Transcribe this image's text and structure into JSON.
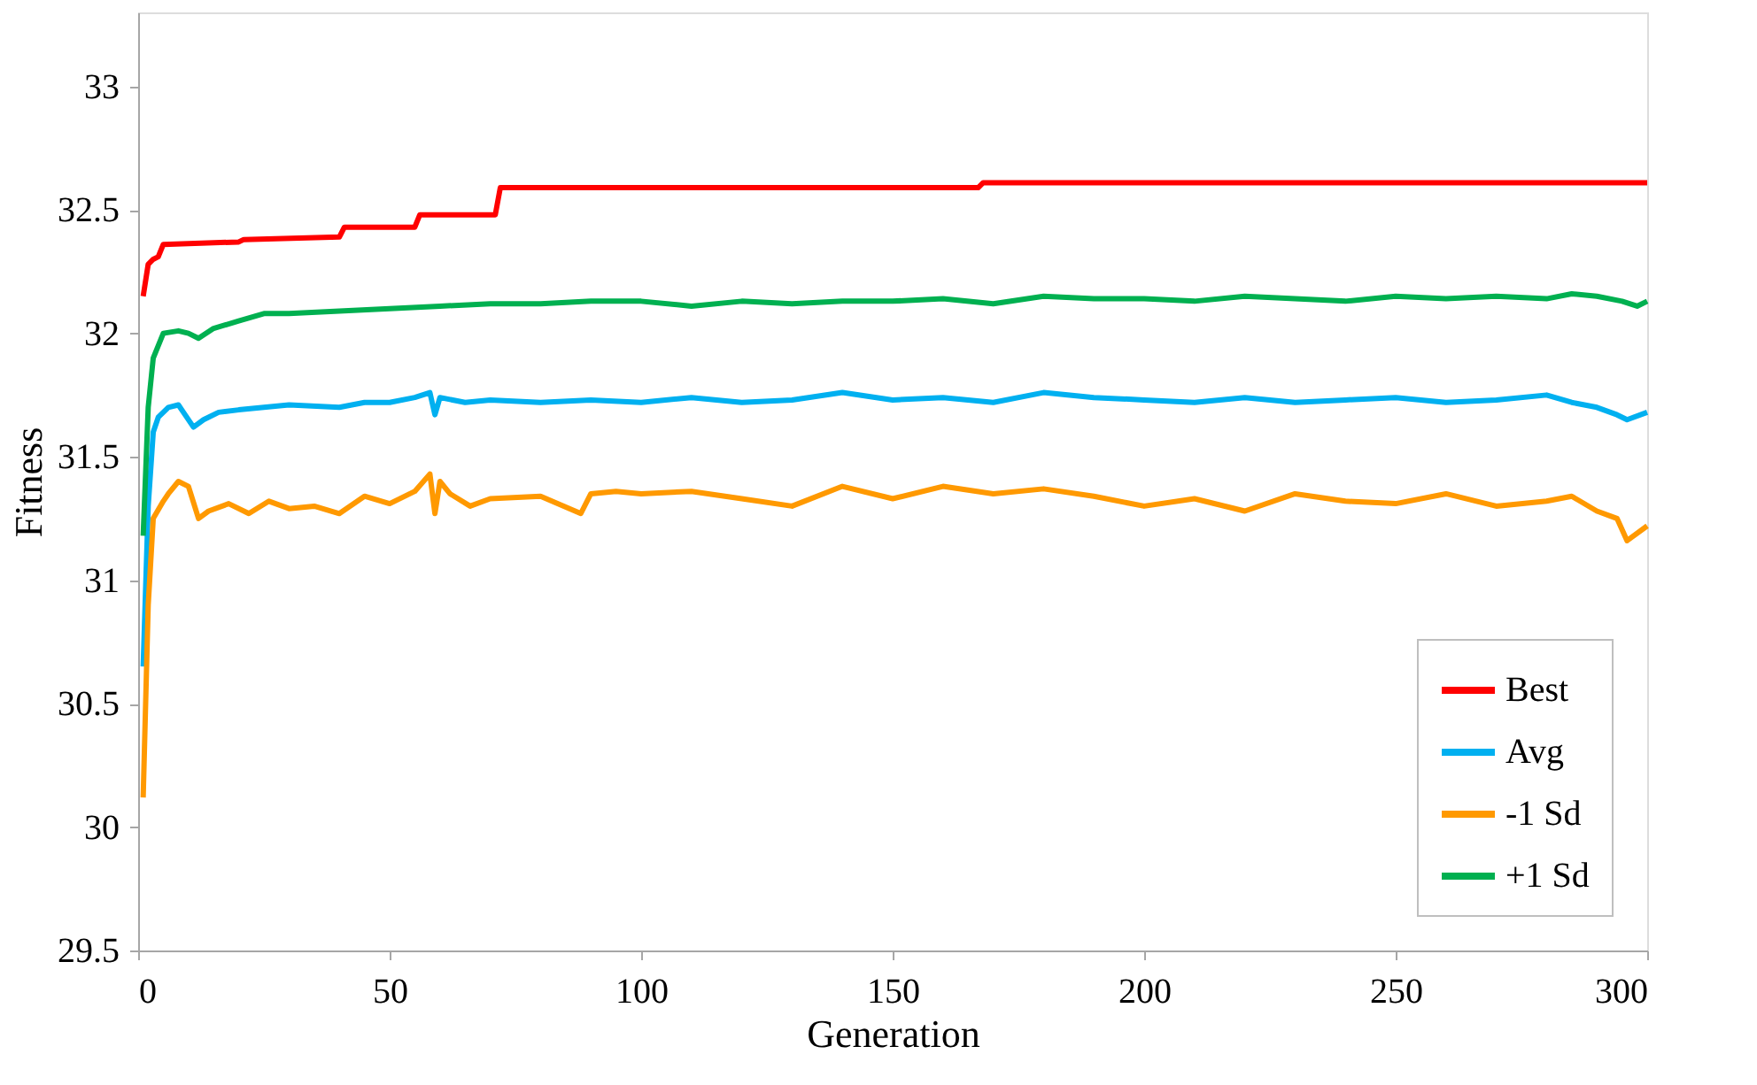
{
  "chart_data": {
    "type": "line",
    "xlabel": "Generation",
    "ylabel": "Fitness",
    "xlim": [
      0,
      300
    ],
    "xticks": [
      0,
      50,
      100,
      150,
      200,
      250,
      300
    ],
    "ylim": [
      29.5,
      33.3
    ],
    "yticks": [
      29.5,
      30,
      30.5,
      31,
      31.5,
      32,
      32.5,
      33
    ],
    "grid": false,
    "legend": "bottom right",
    "line_style": "solid",
    "marker": "none",
    "series": [
      {
        "name": "Best",
        "color": "#ff0000",
        "x": [
          1,
          2,
          3,
          4,
          5,
          20,
          21,
          40,
          41,
          55,
          56,
          71,
          72,
          167,
          168,
          300
        ],
        "values": [
          32.15,
          32.28,
          32.3,
          32.31,
          32.36,
          32.37,
          32.38,
          32.39,
          32.43,
          32.43,
          32.48,
          32.48,
          32.59,
          32.59,
          32.61,
          32.61
        ]
      },
      {
        "name": "Avg",
        "color": "#00b0f0",
        "x": [
          1,
          2,
          3,
          4,
          6,
          8,
          9,
          11,
          13,
          16,
          20,
          25,
          30,
          40,
          45,
          50,
          55,
          58,
          59,
          60,
          65,
          70,
          80,
          90,
          100,
          110,
          120,
          130,
          140,
          150,
          160,
          170,
          180,
          190,
          200,
          210,
          220,
          230,
          240,
          250,
          260,
          270,
          280,
          285,
          290,
          294,
          296,
          300
        ],
        "values": [
          30.65,
          31.3,
          31.6,
          31.66,
          31.7,
          31.71,
          31.68,
          31.62,
          31.65,
          31.68,
          31.69,
          31.7,
          31.71,
          31.7,
          31.72,
          31.72,
          31.74,
          31.76,
          31.67,
          31.74,
          31.72,
          31.73,
          31.72,
          31.73,
          31.72,
          31.74,
          31.72,
          31.73,
          31.76,
          31.73,
          31.74,
          31.72,
          31.76,
          31.74,
          31.73,
          31.72,
          31.74,
          31.72,
          31.73,
          31.74,
          31.72,
          31.73,
          31.75,
          31.72,
          31.7,
          31.67,
          31.65,
          31.68
        ]
      },
      {
        "name": "-1 Sd",
        "color": "#ff9900",
        "x": [
          1,
          2,
          3,
          5,
          6,
          8,
          10,
          12,
          14,
          18,
          22,
          26,
          30,
          35,
          40,
          45,
          50,
          55,
          58,
          59,
          60,
          62,
          66,
          70,
          80,
          88,
          90,
          95,
          100,
          110,
          120,
          130,
          140,
          150,
          160,
          170,
          180,
          190,
          200,
          210,
          220,
          230,
          240,
          250,
          260,
          270,
          280,
          285,
          290,
          294,
          296,
          300
        ],
        "values": [
          30.12,
          30.9,
          31.25,
          31.32,
          31.35,
          31.4,
          31.38,
          31.25,
          31.28,
          31.31,
          31.27,
          31.32,
          31.29,
          31.3,
          31.27,
          31.34,
          31.31,
          31.36,
          31.43,
          31.27,
          31.4,
          31.35,
          31.3,
          31.33,
          31.34,
          31.27,
          31.35,
          31.36,
          31.35,
          31.36,
          31.33,
          31.3,
          31.38,
          31.33,
          31.38,
          31.35,
          31.37,
          31.34,
          31.3,
          31.33,
          31.28,
          31.35,
          31.32,
          31.31,
          31.35,
          31.3,
          31.32,
          31.34,
          31.28,
          31.25,
          31.16,
          31.22
        ]
      },
      {
        "name": "+1 Sd",
        "color": "#00b050",
        "x": [
          1,
          2,
          3,
          5,
          8,
          10,
          12,
          15,
          20,
          25,
          30,
          40,
          50,
          60,
          70,
          80,
          90,
          100,
          110,
          120,
          130,
          140,
          150,
          160,
          170,
          180,
          190,
          200,
          210,
          220,
          230,
          240,
          250,
          260,
          270,
          280,
          285,
          290,
          295,
          298,
          300
        ],
        "values": [
          31.18,
          31.7,
          31.9,
          32.0,
          32.01,
          32.0,
          31.98,
          32.02,
          32.05,
          32.08,
          32.08,
          32.09,
          32.1,
          32.11,
          32.12,
          32.12,
          32.13,
          32.13,
          32.11,
          32.13,
          32.12,
          32.13,
          32.13,
          32.14,
          32.12,
          32.15,
          32.14,
          32.14,
          32.13,
          32.15,
          32.14,
          32.13,
          32.15,
          32.14,
          32.15,
          32.14,
          32.16,
          32.15,
          32.13,
          32.11,
          32.13
        ]
      }
    ]
  }
}
